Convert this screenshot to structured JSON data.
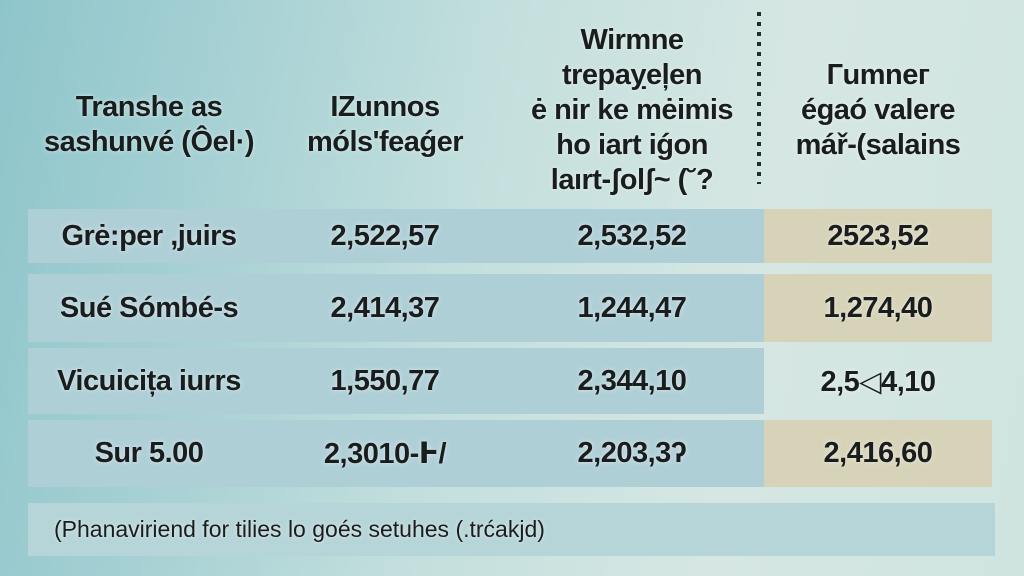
{
  "colors": {
    "row_band": "#afcfd7",
    "highlight_band": "#d7d3b8",
    "footnote_band": "#b6d5d8",
    "background_left": "#8ec5cb",
    "background_right": "#d6e7e3",
    "text": "#1a1d1e",
    "divider": "#1d2e31"
  },
  "chart_data": {
    "type": "table",
    "columns": [
      "Transhe as sashunvé (Ôel·)",
      "IZunnos móls'feaǵer",
      "Wirmne trepaỵeļen ė nir ke mėimis ho iart iǵon laırt-ʃolʃ~ (˘?",
      "Гumneг égaó valere mář-(salains"
    ],
    "header_lines": [
      [
        "Transhe as",
        "sashunvé (Ôel·)"
      ],
      [
        "IZunnos",
        "móls'feaǵer"
      ],
      [
        "Wirmne",
        "trepaỵeļen",
        "ė nir ke mėimis",
        "ho iart iǵon",
        "laırt-ʃolʃ~ (˘?"
      ],
      [
        "Гumneг",
        "égaó valere",
        "mář-(salains"
      ]
    ],
    "rows": [
      [
        "Grė:per ,juirs",
        "2,522,57",
        "2,532,52",
        "2523,52"
      ],
      [
        "Sué Sómbé-s",
        "2,414,37",
        "1,244,47",
        "1,274,40"
      ],
      [
        "Vicuicița iurrs",
        "1,550,77",
        "2,344,10",
        "2,5◁4,10"
      ],
      [
        "Sur 5.00",
        "2,3010-Ͱ/",
        "2,203,3ʔ",
        "2,416,60"
      ]
    ],
    "footnote": "(Phanaviriend for tilies lo goés setuhes (.trćakjd)"
  }
}
